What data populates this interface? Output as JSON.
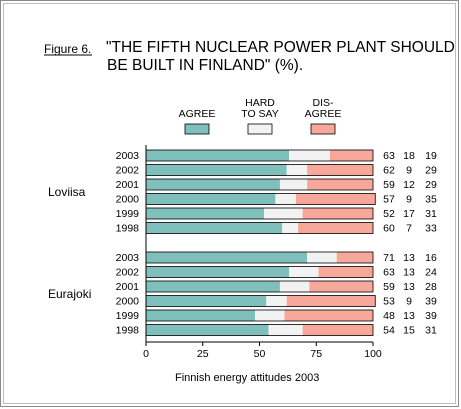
{
  "figure": {
    "label": "Figure 6.",
    "title_line1": "\"THE FIFTH NUCLEAR POWER PLANT SHOULD",
    "title_line2": "BE BUILT IN FINLAND\" (%)."
  },
  "footer": "Finnish energy attitudes 2003",
  "legend": [
    {
      "key": "agree",
      "lines": [
        "AGREE"
      ],
      "color": "#7fbfbc"
    },
    {
      "key": "hard",
      "lines": [
        "HARD",
        "TO SAY"
      ],
      "color": "#f2f2f2"
    },
    {
      "key": "disagree",
      "lines": [
        "DIS-",
        "AGREE"
      ],
      "color": "#f7a89a"
    }
  ],
  "chart_data": {
    "type": "bar",
    "stacked": true,
    "orientation": "horizontal",
    "title": "\"THE FIFTH NUCLEAR POWER PLANT SHOULD BE BUILT IN FINLAND\" (%).",
    "xlim": [
      0,
      100
    ],
    "xticks": [
      "0",
      "25",
      "50",
      "75",
      "100"
    ],
    "groups": [
      {
        "name": "Loviisa",
        "rows": [
          {
            "year": "2003",
            "values": [
              63,
              18,
              19
            ]
          },
          {
            "year": "2002",
            "values": [
              62,
              9,
              29
            ]
          },
          {
            "year": "2001",
            "values": [
              59,
              12,
              29
            ]
          },
          {
            "year": "2000",
            "values": [
              57,
              9,
              35
            ]
          },
          {
            "year": "1999",
            "values": [
              52,
              17,
              31
            ]
          },
          {
            "year": "1998",
            "values": [
              60,
              7,
              33
            ]
          }
        ]
      },
      {
        "name": "Eurajoki",
        "rows": [
          {
            "year": "2003",
            "values": [
              71,
              13,
              16
            ]
          },
          {
            "year": "2002",
            "values": [
              63,
              13,
              24
            ]
          },
          {
            "year": "2001",
            "values": [
              59,
              13,
              28
            ]
          },
          {
            "year": "2000",
            "values": [
              53,
              9,
              39
            ]
          },
          {
            "year": "1999",
            "values": [
              48,
              13,
              39
            ]
          },
          {
            "year": "1998",
            "values": [
              54,
              15,
              31
            ]
          }
        ]
      }
    ]
  }
}
